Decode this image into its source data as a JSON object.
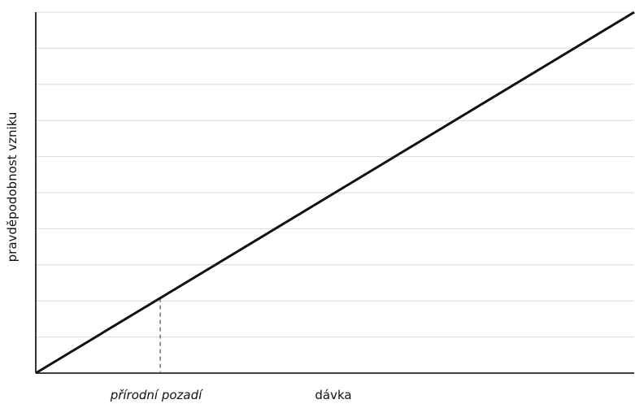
{
  "chart_data": {
    "type": "line",
    "title": "",
    "xlabel": "dávka",
    "ylabel": "pravděpodobnost vzniku",
    "xlim": [
      0,
      100
    ],
    "ylim": [
      0,
      100
    ],
    "grid": {
      "horizontal": true,
      "vertical": false,
      "y_lines": [
        10,
        20,
        30,
        40,
        50,
        60,
        70,
        80,
        90,
        100
      ]
    },
    "series": [
      {
        "x": [
          0,
          100
        ],
        "y": [
          0,
          100
        ]
      }
    ],
    "annotations": [
      {
        "label": "přírodní pozadí",
        "x": 20.8,
        "y": 20.8,
        "line_style": "dashed"
      }
    ],
    "colors": {
      "line": "#111111",
      "grid": "#d9d9d9",
      "axis": "#000000",
      "marker": "#666666"
    }
  }
}
